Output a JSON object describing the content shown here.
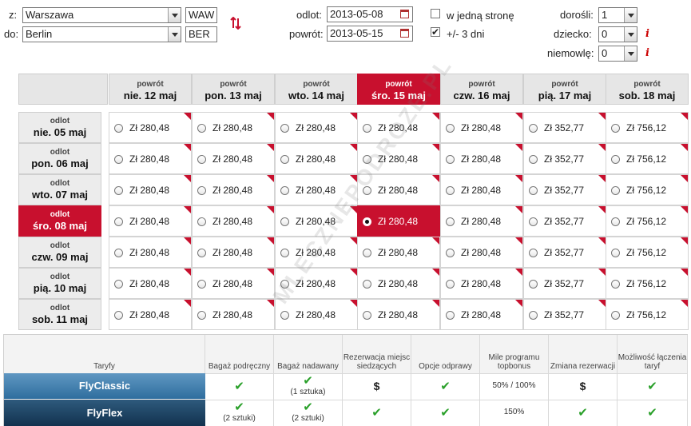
{
  "form": {
    "from_label": "z:",
    "from_city": "Warszawa",
    "from_code": "WAW",
    "to_label": "do:",
    "to_city": "Berlin",
    "to_code": "BER",
    "depart_label": "odlot:",
    "depart_date": "2013-05-08",
    "return_label": "powrót:",
    "return_date": "2013-05-15",
    "oneway_label": "w jedną stronę",
    "oneway_checked": false,
    "flex_label": "+/- 3 dni",
    "flex_checked": true,
    "adults_label": "dorośli:",
    "adults_value": "1",
    "children_label": "dziecko:",
    "children_value": "0",
    "infants_label": "niemowlę:",
    "infants_value": "0",
    "info_glyph": "i"
  },
  "grid": {
    "return_caption": "powrót",
    "depart_caption": "odlot",
    "columns": [
      "nie. 12 maj",
      "pon. 13 maj",
      "wto. 14 maj",
      "śro. 15 maj",
      "czw. 16 maj",
      "pią. 17 maj",
      "sob. 18 maj"
    ],
    "rows": [
      "nie. 05 maj",
      "pon. 06 maj",
      "wto. 07 maj",
      "śro. 08 maj",
      "czw. 09 maj",
      "pią. 10 maj",
      "sob. 11 maj"
    ],
    "prices": [
      "Zł 280,48",
      "Zł 280,48",
      "Zł 280,48",
      "Zł 280,48",
      "Zł 280,48",
      "Zł 352,77",
      "Zł 756,12"
    ],
    "selected_row": 3,
    "selected_col": 3,
    "watermark": "MLECZNEPODROZE.PL",
    "accent_color": "#c8102e"
  },
  "fares": {
    "tariffs_label": "Taryfy",
    "headers": [
      "Bagaż podręczny",
      "Bagaż nadawany",
      "Rezerwacja miejsc siedzących",
      "Opcje odprawy",
      "Mile programu topbonus",
      "Zmiana rezerwacji",
      "Możliwość łączenia taryf"
    ],
    "rows": [
      {
        "name": "FlyClassic",
        "cells": [
          {
            "kind": "check",
            "note": ""
          },
          {
            "kind": "check",
            "note": "(1 sztuka)"
          },
          {
            "kind": "dollar",
            "note": ""
          },
          {
            "kind": "check",
            "note": ""
          },
          {
            "kind": "text",
            "note": "50% / 100%"
          },
          {
            "kind": "dollar",
            "note": ""
          },
          {
            "kind": "check",
            "note": ""
          }
        ]
      },
      {
        "name": "FlyFlex",
        "cells": [
          {
            "kind": "check",
            "note": "(2 sztuki)"
          },
          {
            "kind": "check",
            "note": "(2 sztuki)"
          },
          {
            "kind": "check",
            "note": ""
          },
          {
            "kind": "check",
            "note": ""
          },
          {
            "kind": "text",
            "note": "150%"
          },
          {
            "kind": "check",
            "note": ""
          },
          {
            "kind": "check",
            "note": ""
          }
        ]
      }
    ],
    "check_glyph": "✔",
    "dollar_glyph": "$",
    "check_color": "#2aa02a"
  }
}
